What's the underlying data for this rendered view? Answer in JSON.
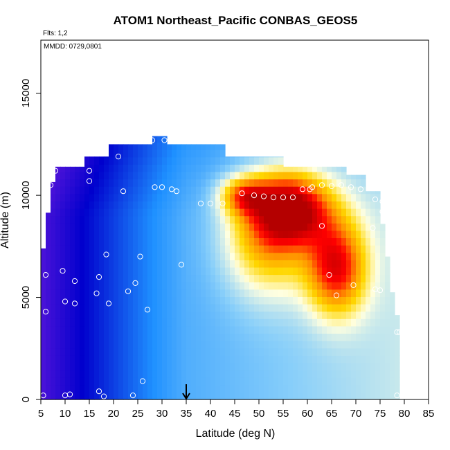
{
  "chart_data": {
    "type": "heatmap",
    "title": "ATOM1 Northeast_Pacific CONBAS_GEOS5",
    "annotations": [
      "Flts: 1,2",
      "MMDD: 0729,0801"
    ],
    "xlabel": "Latitude (deg N)",
    "ylabel": "Altitude (m)",
    "xlim": [
      5,
      85
    ],
    "ylim": [
      0,
      17600
    ],
    "x_ticks": [
      5,
      10,
      15,
      20,
      25,
      30,
      35,
      40,
      45,
      50,
      55,
      60,
      65,
      70,
      75,
      80,
      85
    ],
    "y_ticks": [
      0,
      5000,
      10000,
      15000
    ],
    "colormap": [
      "#7f1fe0",
      "#0000cd",
      "#1e90ff",
      "#87cefa",
      "#ffffe0",
      "#ffd700",
      "#ff8c00",
      "#ff0000",
      "#b30000"
    ],
    "grid": false,
    "marker": {
      "x": 35,
      "y": 0,
      "label": "arrow"
    },
    "field_blobs": [
      {
        "x": 57,
        "y": 9400,
        "sx": 8,
        "sy": 1700,
        "amp": 0.55
      },
      {
        "x": 66,
        "y": 6500,
        "sx": 6,
        "sy": 2300,
        "amp": 0.5
      },
      {
        "x": 52,
        "y": 8000,
        "sx": 9,
        "sy": 2800,
        "amp": 0.35
      },
      {
        "x": 47,
        "y": 10000,
        "sx": 5,
        "sy": 900,
        "amp": 0.35
      }
    ],
    "observations": [
      [
        5.5,
        200
      ],
      [
        10,
        200
      ],
      [
        17,
        400
      ],
      [
        18,
        150
      ],
      [
        24,
        200
      ],
      [
        26,
        900
      ],
      [
        11,
        250
      ],
      [
        6,
        4300
      ],
      [
        10,
        4800
      ],
      [
        12,
        4700
      ],
      [
        6,
        6100
      ],
      [
        9.5,
        6300
      ],
      [
        12,
        5800
      ],
      [
        16.5,
        5200
      ],
      [
        17,
        6000
      ],
      [
        19,
        4700
      ],
      [
        18.5,
        7100
      ],
      [
        23,
        5300
      ],
      [
        24.5,
        5700
      ],
      [
        25.5,
        7000
      ],
      [
        27,
        4400
      ],
      [
        34,
        6600
      ],
      [
        7,
        10500
      ],
      [
        8,
        11200
      ],
      [
        15,
        11200
      ],
      [
        15,
        10700
      ],
      [
        21,
        11900
      ],
      [
        22,
        10200
      ],
      [
        28,
        12700
      ],
      [
        30.5,
        12700
      ],
      [
        28.5,
        10400
      ],
      [
        30,
        10400
      ],
      [
        32,
        10300
      ],
      [
        33,
        10200
      ],
      [
        38,
        9600
      ],
      [
        40,
        9600
      ],
      [
        42.5,
        9600
      ],
      [
        46.5,
        10100
      ],
      [
        49,
        10000
      ],
      [
        51,
        9950
      ],
      [
        53,
        9900
      ],
      [
        55,
        9900
      ],
      [
        57,
        9900
      ],
      [
        59,
        10300
      ],
      [
        61,
        10400
      ],
      [
        63,
        10500
      ],
      [
        65,
        10450
      ],
      [
        67,
        10500
      ],
      [
        69,
        10400
      ],
      [
        71,
        10300
      ],
      [
        74,
        9800
      ],
      [
        75.5,
        9700
      ],
      [
        75.5,
        9200
      ],
      [
        63,
        8500
      ],
      [
        64.5,
        6100
      ],
      [
        66,
        5100
      ],
      [
        69.5,
        5600
      ],
      [
        74,
        5400
      ],
      [
        75,
        5350
      ],
      [
        78.5,
        3300
      ],
      [
        79,
        3300
      ],
      [
        78.5,
        200
      ],
      [
        73.5,
        8400
      ],
      [
        60.5,
        10300
      ]
    ]
  }
}
